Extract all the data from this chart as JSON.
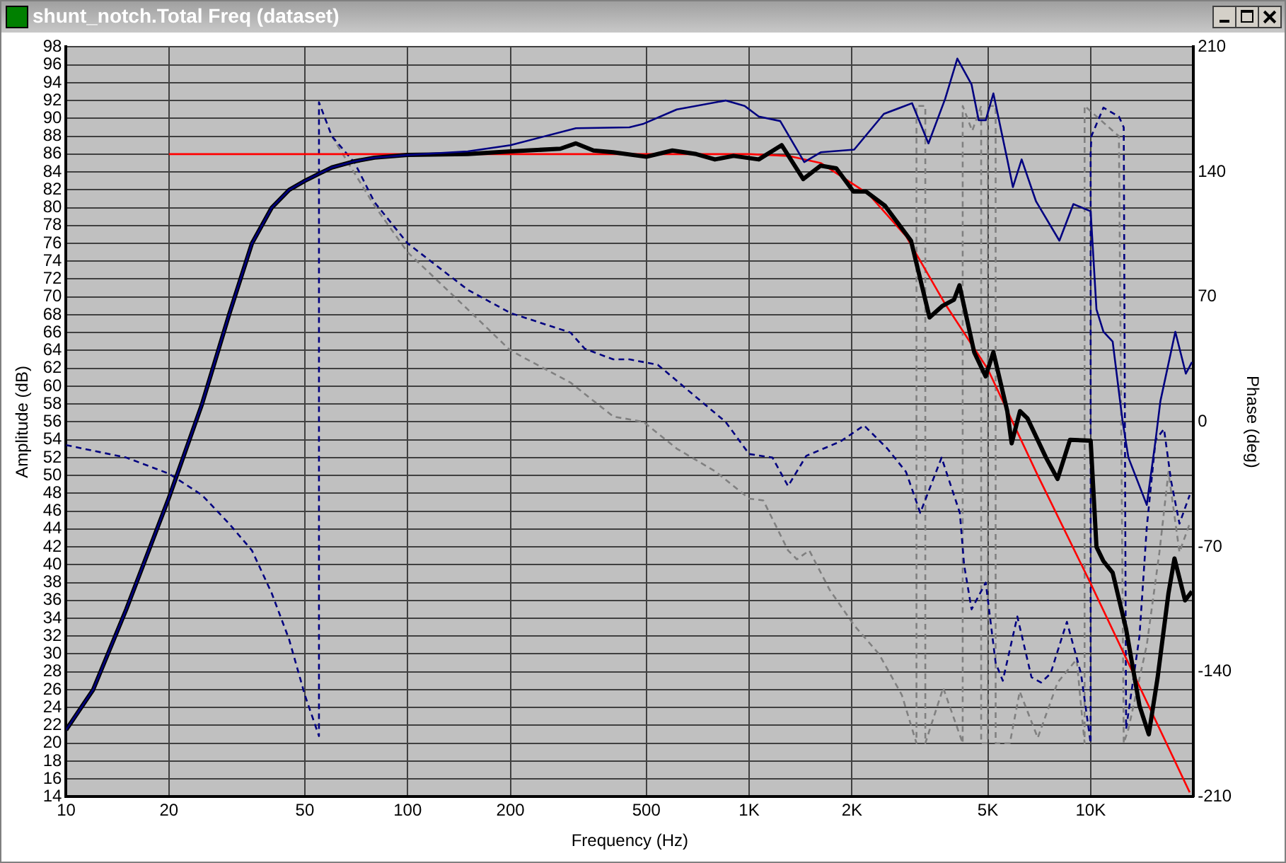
{
  "chart_data": {
    "type": "line",
    "title": "shunt_notch.Total Freq (dataset)",
    "xlabel": "Frequency (Hz)",
    "ylabel": "Amplitude (dB)",
    "y2label": "Phase (deg)",
    "log": "x",
    "grid": true,
    "legend": false,
    "marker": "none",
    "xlim": [
      10,
      20000
    ],
    "xticks": [
      10,
      20,
      50,
      100,
      200,
      500,
      {
        "value": 1000,
        "label": "1K"
      },
      {
        "value": 2000,
        "label": "2K"
      },
      {
        "value": 5000,
        "label": "5K"
      },
      {
        "value": 10000,
        "label": "10K"
      }
    ],
    "ylim": [
      14,
      98
    ],
    "yticks": [
      14,
      16,
      18,
      20,
      22,
      24,
      26,
      28,
      30,
      32,
      34,
      36,
      38,
      40,
      42,
      44,
      46,
      48,
      50,
      52,
      54,
      56,
      58,
      60,
      62,
      64,
      66,
      68,
      70,
      72,
      74,
      76,
      78,
      80,
      82,
      84,
      86,
      88,
      90,
      92,
      94,
      96,
      98
    ],
    "y2lim": [
      -210,
      210
    ],
    "y2ticks": [
      -210,
      -140,
      -70,
      0,
      70,
      140,
      210
    ],
    "series": [
      {
        "color": "#000080",
        "line_style": "solid",
        "x": [
          10,
          12,
          15,
          20,
          25,
          30,
          35,
          40,
          45,
          50,
          55,
          60,
          70,
          80,
          100,
          150,
          200,
          311,
          446,
          491,
          614,
          853,
          970,
          1067,
          1233,
          1450,
          1620,
          2030,
          2480,
          3000,
          3350,
          3750,
          4070,
          4480,
          4700,
          4930,
          5190,
          5700,
          5920,
          6280,
          6920,
          8100,
          8900,
          10000,
          10400,
          10900,
          11600,
          12400,
          12900,
          14600,
          15500,
          16000,
          17700,
          19000,
          19800
        ],
        "values": [
          21.5,
          26,
          35,
          47.5,
          58,
          68,
          76,
          80,
          82,
          83,
          83.8,
          84.5,
          85.2,
          85.6,
          85.9,
          86.3,
          87,
          88.9,
          89,
          89.4,
          91,
          92,
          91.4,
          90.2,
          89.7,
          85.1,
          86.2,
          86.5,
          90.5,
          91.7,
          87.2,
          92.2,
          96.7,
          93.8,
          89.8,
          89.8,
          92.8,
          85.4,
          82.3,
          85.4,
          80.7,
          76.3,
          80.4,
          79.6,
          68.6,
          66.1,
          65,
          56.1,
          52,
          46.7,
          54,
          58.3,
          66.1,
          61.4,
          62.7
        ]
      },
      {
        "color": "#000000",
        "line_style": "solid",
        "x": [
          10,
          12,
          15,
          20,
          25,
          30,
          35,
          40,
          45,
          50,
          55,
          60,
          70,
          80,
          100,
          150,
          200,
          280,
          311,
          350,
          400,
          500,
          596,
          700,
          794,
          900,
          1067,
          1245,
          1440,
          1620,
          1800,
          2020,
          2200,
          2500,
          2978,
          3375,
          3685,
          3981,
          4130,
          4560,
          4925,
          5190,
          5700,
          5870,
          6210,
          6530,
          7400,
          8000,
          8700,
          10000,
          10400,
          10900,
          11600,
          12700,
          13900,
          14800,
          15700,
          16900,
          17600,
          18900,
          19800
        ],
        "values": [
          21.5,
          26,
          35,
          47.5,
          58,
          68,
          76,
          80,
          82,
          83,
          83.8,
          84.5,
          85.2,
          85.6,
          85.9,
          86,
          86.3,
          86.6,
          87.2,
          86.4,
          86.2,
          85.7,
          86.4,
          86,
          85.4,
          85.8,
          85.4,
          87,
          83.2,
          84.7,
          84.4,
          81.8,
          81.8,
          80.2,
          76.3,
          67.7,
          69,
          69.7,
          71.3,
          63.8,
          61.1,
          63.8,
          57.2,
          53.6,
          57.2,
          56.4,
          52,
          49.6,
          54,
          53.9,
          42,
          40.4,
          39.1,
          32.8,
          24.2,
          21,
          27.3,
          36.8,
          40.7,
          36,
          37
        ]
      },
      {
        "color": "#ff0000",
        "line_style": "solid",
        "x": [
          20,
          1000,
          1300,
          1620,
          2240,
          2880,
          3750,
          5000,
          7000,
          10000,
          19500
        ],
        "values": [
          86,
          86,
          85.8,
          85,
          81.5,
          76.8,
          69.2,
          61.9,
          50,
          37.9,
          14.5
        ]
      },
      {
        "color": "#000080",
        "axis": "y2",
        "line_style": "dashed",
        "x": [
          10,
          15,
          20,
          25,
          30,
          35,
          40,
          45,
          50,
          55,
          55,
          60,
          70,
          80,
          100,
          150,
          200,
          300,
          330,
          400,
          446,
          540,
          853,
          1000,
          1170,
          1300,
          1470,
          1850,
          2170,
          2540,
          2880,
          3170,
          3660,
          4140,
          4260,
          4480,
          4930,
          5270,
          5530,
          6100,
          6710,
          7160,
          7630,
          8520,
          9370,
          10000,
          10000,
          10050,
          10900,
          12100,
          12500,
          12700,
          13900,
          14600,
          15500,
          16400,
          17200,
          18200,
          19500
        ],
        "values": [
          -13,
          -20,
          -29,
          -41,
          -57,
          -72,
          -96,
          -122,
          -153,
          -176,
          179,
          160,
          145,
          123,
          100,
          74,
          61,
          50,
          41,
          35,
          35,
          32,
          0,
          -18,
          -20,
          -36,
          -19,
          -11,
          -2,
          -15,
          -28,
          -51,
          -20,
          -51,
          -80,
          -105,
          -90,
          -135,
          -145,
          -109,
          -143,
          -146,
          -141,
          -112,
          -141,
          -180,
          150,
          160,
          176,
          171,
          165,
          -172,
          -120,
          -59,
          -10,
          -4,
          -33,
          -57,
          -41
        ]
      },
      {
        "color": "#808080",
        "axis": "y2",
        "line_style": "dashed",
        "x": [
          60,
          80,
          100,
          150,
          200,
          300,
          400,
          490,
          614,
          800,
          1000,
          1100,
          1300,
          1380,
          1500,
          1720,
          2030,
          2400,
          2800,
          3090,
          3090,
          3280,
          3280,
          3700,
          4220,
          4220,
          4500,
          4780,
          4780,
          5000,
          5000,
          5270,
          5270,
          5800,
          6200,
          7000,
          8000,
          9100,
          9600,
          9600,
          12100,
          12500,
          12900,
          14600,
          15900,
          16900,
          18200,
          19500
        ],
        "values": [
          160,
          121,
          95,
          63,
          40,
          22,
          3,
          0,
          -15,
          -28,
          -43,
          -44,
          -72,
          -77,
          -72,
          -94,
          -114,
          -130,
          -153,
          -180,
          177,
          177,
          -180,
          -149,
          -180,
          177,
          163,
          177,
          -180,
          -180,
          177,
          177,
          -180,
          -180,
          -151,
          -177,
          -146,
          -133,
          -180,
          177,
          160,
          -180,
          -172,
          -125,
          -73,
          -28,
          -73,
          -57
        ]
      }
    ]
  }
}
